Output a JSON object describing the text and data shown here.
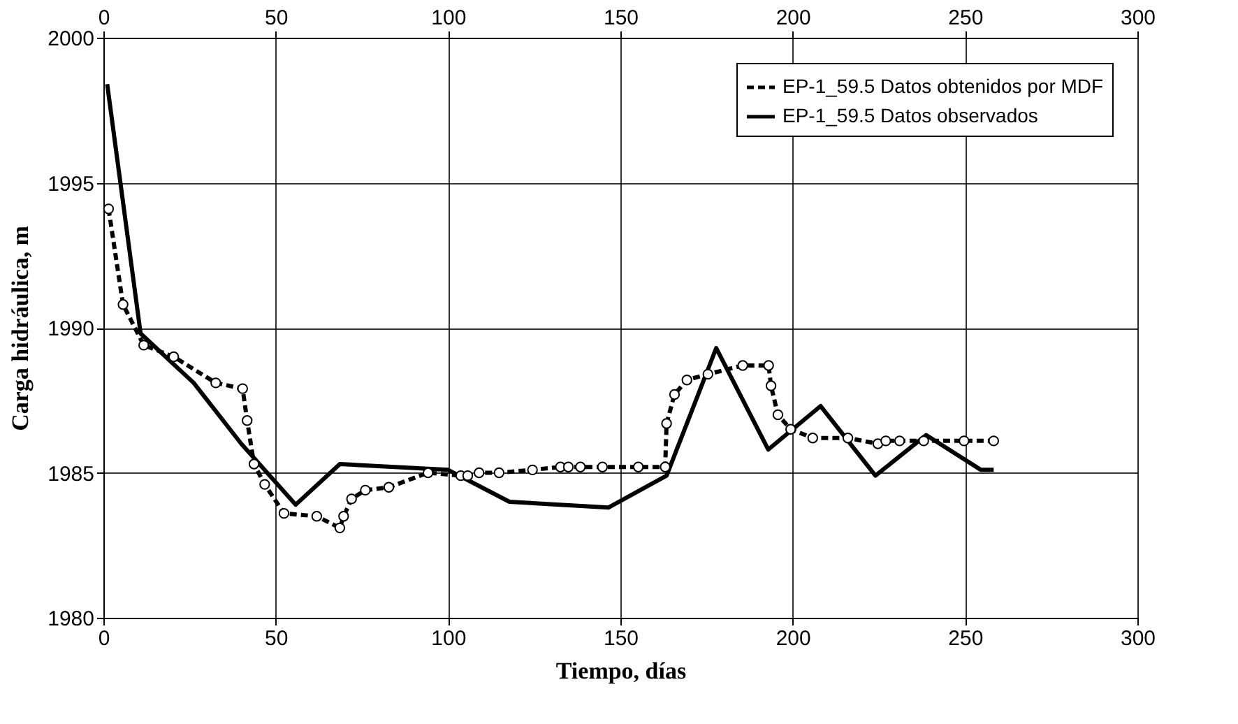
{
  "chart_data": {
    "type": "line",
    "xlabel": "Tiempo, días",
    "ylabel": "Carga hidráulica, m",
    "xlim": [
      0,
      300
    ],
    "xticks": [
      0,
      50,
      100,
      150,
      200,
      250,
      300
    ],
    "x2lim": [
      0,
      300
    ],
    "x2ticks": [
      0,
      50,
      100,
      150,
      200,
      250,
      300
    ],
    "ylim": [
      1980,
      2000
    ],
    "yticks": [
      1980,
      1985,
      1990,
      1995,
      2000
    ],
    "grid": true,
    "legend": "top right",
    "series": [
      {
        "name": "EP-1_59.5 Datos obtenidos por MDF",
        "color": "#000000",
        "line_style": "dashed",
        "marker": "circle",
        "x": [
          1.5,
          5.7,
          11.7,
          20.4,
          32.6,
          40.4,
          41.7,
          43.7,
          46.8,
          52.4,
          61.9,
          68.6,
          69.7,
          72,
          76,
          82.8,
          94.2,
          103.7,
          105.7,
          109,
          114.8,
          124.5,
          132.6,
          134.9,
          138.4,
          144.8,
          155.2,
          163,
          163.4,
          165.7,
          169.3,
          175.4,
          185.5,
          193,
          193.7,
          195.7,
          199.4,
          205.8,
          216,
          224.7,
          227,
          231,
          238,
          249.7,
          258.3
        ],
        "values": [
          1994.1,
          1990.8,
          1989.4,
          1989.0,
          1988.1,
          1987.9,
          1986.8,
          1985.3,
          1984.6,
          1983.6,
          1983.5,
          1983.1,
          1983.5,
          1984.1,
          1984.4,
          1984.5,
          1985.0,
          1984.9,
          1984.9,
          1985.0,
          1985.0,
          1985.1,
          1985.2,
          1985.2,
          1985.2,
          1985.2,
          1985.2,
          1985.2,
          1986.7,
          1987.7,
          1988.2,
          1988.4,
          1988.7,
          1988.7,
          1988.0,
          1987.0,
          1986.5,
          1986.2,
          1986.2,
          1986.0,
          1986.1,
          1986.1,
          1986.1,
          1986.1,
          1986.1
        ]
      },
      {
        "name": "EP-1_59.5 Datos observados",
        "color": "#000000",
        "line_style": "solid",
        "marker": "none",
        "x": [
          1.1,
          10.8,
          26.2,
          40,
          55.8,
          68.6,
          100,
          117.8,
          146.5,
          163.4,
          177.8,
          192.9,
          208.1,
          224,
          238.7,
          254.6,
          258.3
        ],
        "values": [
          1998.4,
          1989.8,
          1988.1,
          1986.0,
          1983.9,
          1985.3,
          1985.1,
          1984.0,
          1983.8,
          1984.9,
          1989.3,
          1985.8,
          1987.3,
          1984.9,
          1986.3,
          1985.1,
          1985.1
        ]
      }
    ]
  }
}
